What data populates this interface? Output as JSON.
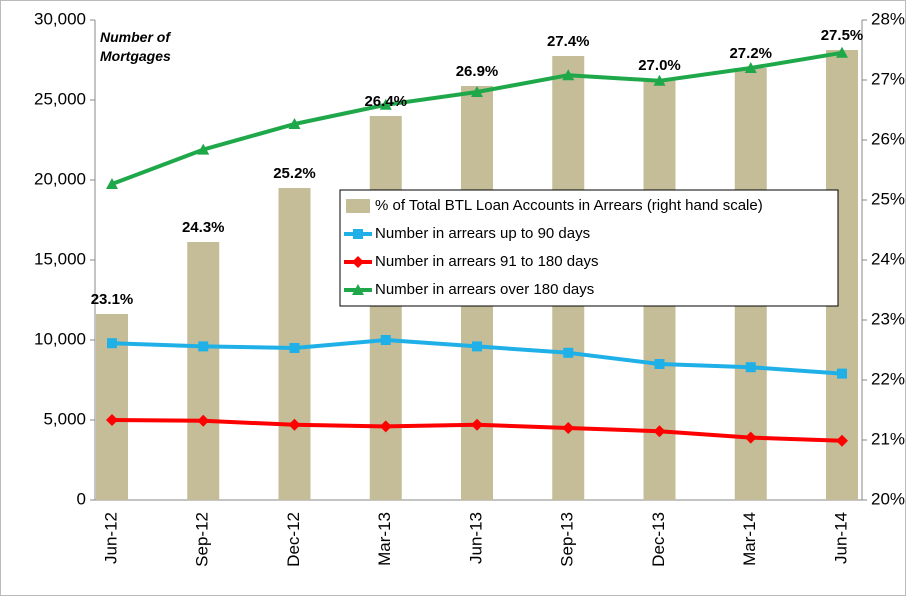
{
  "chart_data": {
    "type": "bar",
    "annotation": "Number of Mortgages",
    "categories": [
      "Jun-12",
      "Sep-12",
      "Dec-12",
      "Mar-13",
      "Jun-13",
      "Sep-13",
      "Dec-13",
      "Mar-14",
      "Jun-14"
    ],
    "series": [
      {
        "name": "% of Total BTL Loan Accounts in Arrears (right hand scale)",
        "type": "bar",
        "axis": "y2",
        "color": "#c4bd97",
        "values": [
          23.1,
          24.3,
          25.2,
          26.4,
          26.9,
          27.4,
          27.0,
          27.2,
          27.5
        ],
        "value_labels": [
          "23.1%",
          "24.3%",
          "25.2%",
          "26.4%",
          "26.9%",
          "27.4%",
          "27.0%",
          "27.2%",
          "27.5%"
        ]
      },
      {
        "name": "Number in arrears up to 90 days",
        "type": "line",
        "marker": "square",
        "color": "#1fb0e8",
        "values": [
          9800,
          9600,
          9500,
          10000,
          9600,
          9200,
          8500,
          8300,
          7900
        ]
      },
      {
        "name": "Number in arrears 91 to 180 days",
        "type": "line",
        "marker": "diamond",
        "color": "#ff0000",
        "values": [
          5000,
          4950,
          4700,
          4600,
          4700,
          4500,
          4300,
          3900,
          3700
        ]
      },
      {
        "name": "Number in arrears over 180 days",
        "type": "line",
        "marker": "triangle",
        "color": "#1ea84a",
        "values": [
          19750,
          21900,
          23500,
          24700,
          25500,
          26550,
          26200,
          27000,
          27950
        ]
      }
    ],
    "ylim": [
      0,
      30000
    ],
    "yticks": [
      0,
      {
        "value": 5000,
        "label": "5,000"
      },
      {
        "value": 10000,
        "label": "10,000"
      },
      {
        "value": 15000,
        "label": "15,000"
      },
      {
        "value": 20000,
        "label": "20,000"
      },
      {
        "value": 25000,
        "label": "25,000"
      },
      {
        "value": 30000,
        "label": "30,000"
      }
    ],
    "y2lim": [
      20,
      28
    ],
    "y2ticks": [
      {
        "value": 20,
        "label": "20%"
      },
      {
        "value": 21,
        "label": "21%"
      },
      {
        "value": 22,
        "label": "22%"
      },
      {
        "value": 23,
        "label": "23%"
      },
      {
        "value": 24,
        "label": "24%"
      },
      {
        "value": 25,
        "label": "25%"
      },
      {
        "value": 26,
        "label": "26%"
      },
      {
        "value": 27,
        "label": "27%"
      },
      {
        "value": 28,
        "label": "28%"
      }
    ],
    "grid": false,
    "legend": "center"
  }
}
